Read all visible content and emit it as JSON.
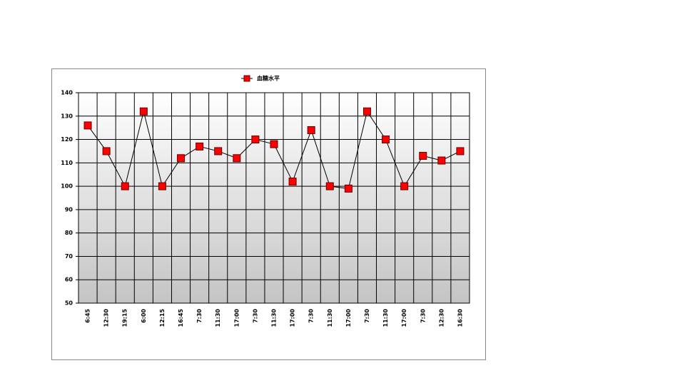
{
  "chart_data": {
    "type": "line",
    "categories": [
      "6:45",
      "12:30",
      "19:15",
      "6:00",
      "12:15",
      "16:45",
      "7:30",
      "11:30",
      "17:00",
      "7:30",
      "11:30",
      "17:00",
      "7:30",
      "11:30",
      "17:00",
      "7:30",
      "11:30",
      "17:00",
      "7:30",
      "12:30",
      "16:30"
    ],
    "series": [
      {
        "name": "血糖水平",
        "color": "#ff0000",
        "values": [
          126,
          115,
          100,
          132,
          100,
          112,
          117,
          115,
          112,
          120,
          118,
          102,
          124,
          100,
          99,
          132,
          120,
          100,
          113,
          111,
          115
        ]
      }
    ],
    "ylim": [
      50,
      140
    ],
    "yticks": [
      50,
      60,
      70,
      80,
      90,
      100,
      110,
      120,
      130,
      140
    ],
    "grid": true,
    "legend": "top"
  }
}
